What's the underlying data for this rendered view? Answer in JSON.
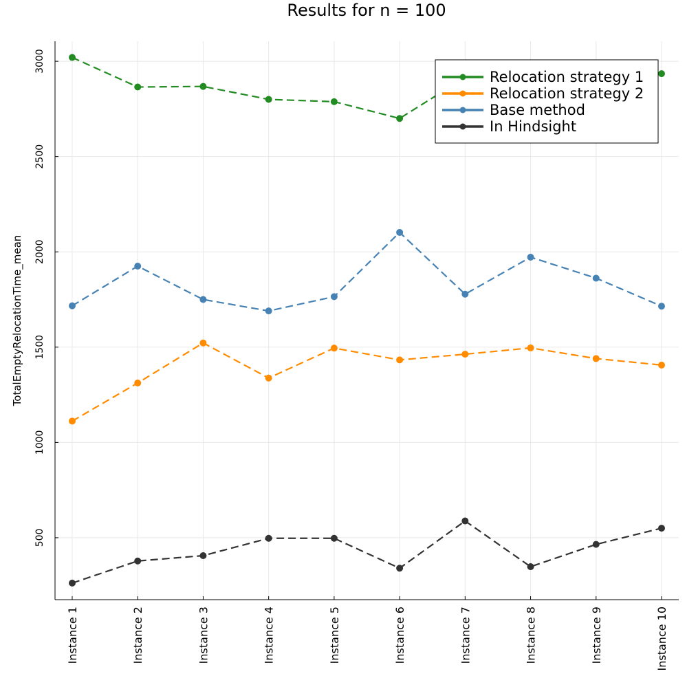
{
  "chart_data": {
    "type": "line",
    "title": "Results for n = 100",
    "xlabel": "",
    "ylabel": "TotalEmptyRelocationTime_mean",
    "categories": [
      "Instance 1",
      "Instance 2",
      "Instance 3",
      "Instance 4",
      "Instance 5",
      "Instance 6",
      "Instance 7",
      "Instance 8",
      "Instance 9",
      "Instance 10"
    ],
    "ylim": [
      175,
      3105
    ],
    "yticks": [
      500,
      1000,
      1500,
      2000,
      2500,
      3000
    ],
    "grid": true,
    "legend_position": "top-right",
    "series": [
      {
        "name": "Relocation strategy 1",
        "color": "#228b22",
        "values": [
          3020,
          2865,
          2868,
          2800,
          2788,
          2700,
          2915,
          2850,
          2935,
          2935
        ]
      },
      {
        "name": "Relocation strategy 2",
        "color": "#ff8c00",
        "values": [
          1112,
          1312,
          1522,
          1338,
          1495,
          1433,
          1463,
          1496,
          1440,
          1406
        ]
      },
      {
        "name": "Base method",
        "color": "#4682b4",
        "values": [
          1717,
          1925,
          1750,
          1690,
          1765,
          2102,
          1778,
          1972,
          1862,
          1715
        ]
      },
      {
        "name": "In Hindsight",
        "color": "#333333",
        "values": [
          262,
          378,
          406,
          497,
          497,
          340,
          588,
          348,
          465,
          550
        ]
      }
    ]
  }
}
